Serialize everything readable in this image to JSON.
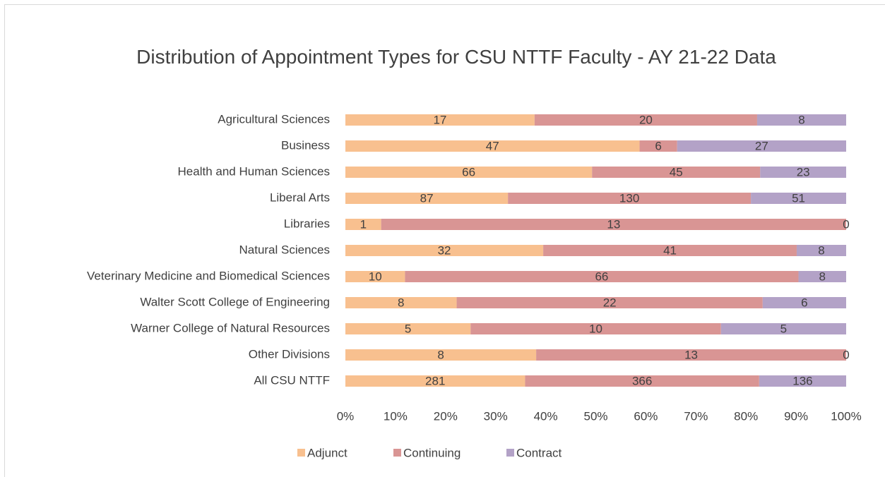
{
  "chart_data": {
    "type": "bar",
    "orientation": "horizontal",
    "stack": "percent",
    "title": "Distribution of Appointment Types for CSU NTTF Faculty - AY 21-22 Data",
    "categories": [
      "Agricultural Sciences",
      "Business",
      "Health and Human Sciences",
      "Liberal Arts",
      "Libraries",
      "Natural Sciences",
      "Veterinary Medicine and Biomedical Sciences",
      "Walter Scott College of Engineering",
      "Warner College of Natural Resources",
      "Other Divisions",
      "All CSU NTTF"
    ],
    "series": [
      {
        "name": "Adjunct",
        "color": "#f8c08f",
        "values": [
          17,
          47,
          66,
          87,
          1,
          32,
          10,
          8,
          5,
          8,
          281
        ]
      },
      {
        "name": "Continuing",
        "color": "#d99594",
        "values": [
          20,
          6,
          45,
          130,
          13,
          41,
          66,
          22,
          10,
          13,
          366
        ]
      },
      {
        "name": "Contract",
        "color": "#b3a2c7",
        "values": [
          8,
          27,
          23,
          51,
          0,
          8,
          8,
          6,
          5,
          0,
          136
        ]
      }
    ],
    "xlim": [
      0,
      1
    ],
    "xticks": [
      {
        "value": 0,
        "label": "0%"
      },
      {
        "value": 0.1,
        "label": "10%"
      },
      {
        "value": 0.2,
        "label": "20%"
      },
      {
        "value": 0.3,
        "label": "30%"
      },
      {
        "value": 0.4,
        "label": "40%"
      },
      {
        "value": 0.5,
        "label": "50%"
      },
      {
        "value": 0.6,
        "label": "60%"
      },
      {
        "value": 0.7,
        "label": "70%"
      },
      {
        "value": 0.8,
        "label": "80%"
      },
      {
        "value": 0.9,
        "label": "90%"
      },
      {
        "value": 1,
        "label": "100%"
      }
    ],
    "grid": false,
    "legend": "bottom"
  }
}
